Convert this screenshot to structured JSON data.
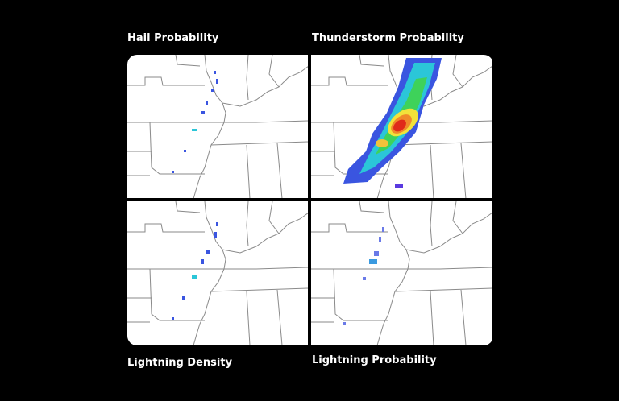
{
  "panels": [
    {
      "label": "Hail Probability"
    },
    {
      "label": "Thunderstorm Probability"
    },
    {
      "label": "Lightning Density"
    },
    {
      "label": "Lightning Probability"
    }
  ]
}
